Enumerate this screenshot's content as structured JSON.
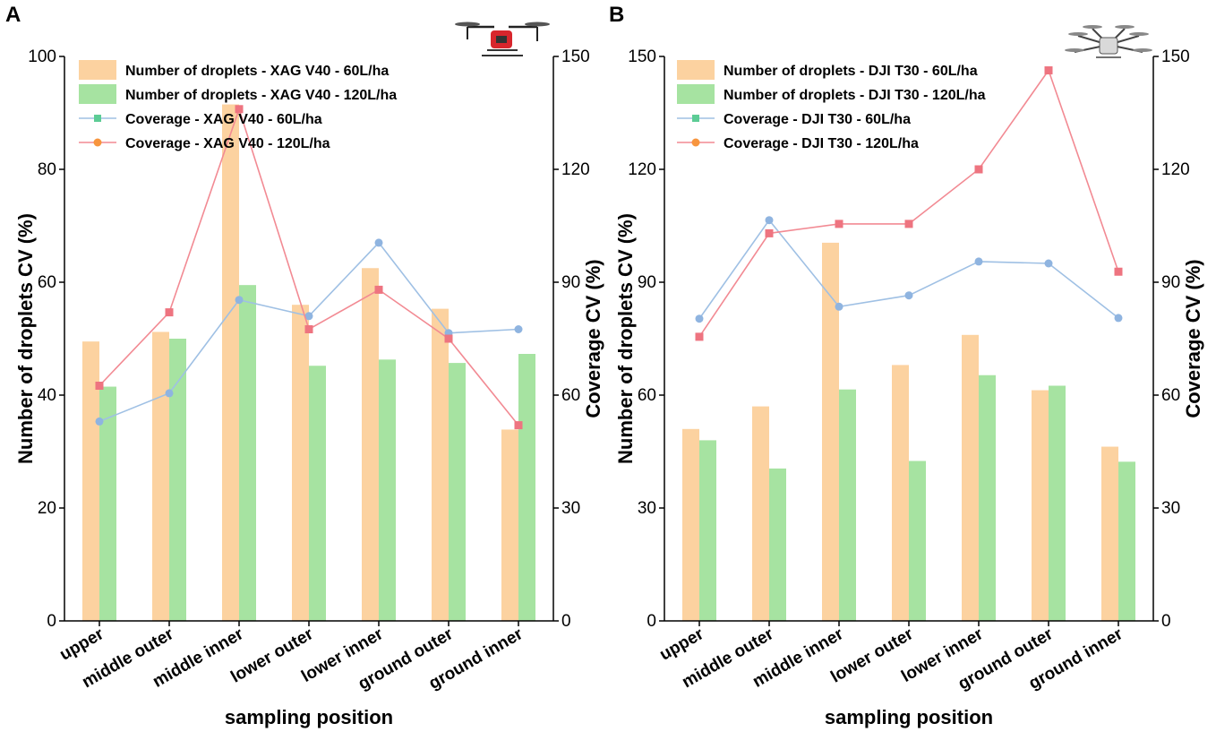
{
  "colors": {
    "bar_60": "#fcd2a0",
    "bar_120": "#a6e3a1",
    "line_60": "#9fc0e4",
    "line_120": "#f28a93",
    "marker_60": "#8fb4e0",
    "marker_120": "#ee7480",
    "legend_marker_60": "#5ccc95",
    "legend_marker_120": "#f7953e",
    "axis": "#000000"
  },
  "chart_data": [
    {
      "panel": "A",
      "type": "bar+line",
      "categories": [
        "upper",
        "middle outer",
        "middle inner",
        "lower outer",
        "lower inner",
        "ground outer",
        "ground inner"
      ],
      "xlabel": "sampling position",
      "ylabel": "Number of droplets CV (%)",
      "y2label": "Coverage CV (%)",
      "ylim": [
        0,
        100
      ],
      "yticks": [
        0,
        20,
        40,
        60,
        80,
        100
      ],
      "y2lim": [
        0,
        150
      ],
      "y2ticks": [
        0,
        30,
        60,
        90,
        120,
        150
      ],
      "bars": [
        {
          "name": "Number of droplets - XAG V40 - 60L/ha",
          "key": "60",
          "values": [
            49.5,
            51.2,
            91.5,
            56.0,
            62.5,
            55.3,
            33.9
          ]
        },
        {
          "name": "Number of droplets - XAG V40 - 120L/ha",
          "key": "120",
          "values": [
            41.5,
            50.0,
            59.5,
            45.2,
            46.3,
            45.7,
            47.3
          ]
        }
      ],
      "lines": [
        {
          "name": "Coverage - XAG V40 - 60L/ha",
          "key": "60",
          "values": [
            53.0,
            60.5,
            85.3,
            81.0,
            100.5,
            76.5,
            77.5
          ]
        },
        {
          "name": "Coverage - XAG V40 - 120L/ha",
          "key": "120",
          "values": [
            62.5,
            82.0,
            136.0,
            77.5,
            88.0,
            75.0,
            52.0
          ]
        }
      ]
    },
    {
      "panel": "B",
      "type": "bar+line",
      "categories": [
        "upper",
        "middle outer",
        "middle inner",
        "lower outer",
        "lower inner",
        "ground outer",
        "ground inner"
      ],
      "xlabel": "sampling position",
      "ylabel": "Number of droplets CV (%)",
      "y2label": "Coverage CV (%)",
      "ylim": [
        0,
        150
      ],
      "yticks": [
        0,
        30,
        60,
        90,
        120,
        150
      ],
      "y2lim": [
        0,
        150
      ],
      "y2ticks": [
        0,
        30,
        60,
        90,
        120,
        150
      ],
      "bars": [
        {
          "name": "Number of droplets - DJI T30 - 60L/ha",
          "key": "60",
          "values": [
            51.0,
            57.0,
            100.5,
            68.0,
            76.0,
            61.3,
            46.3
          ]
        },
        {
          "name": "Number of droplets - DJI T30 - 120L/ha",
          "key": "120",
          "values": [
            48.0,
            40.5,
            61.5,
            42.5,
            65.3,
            62.5,
            42.3
          ]
        }
      ],
      "lines": [
        {
          "name": "Coverage - DJI T30 - 60L/ha",
          "key": "60",
          "values": [
            80.3,
            106.5,
            83.5,
            86.5,
            95.5,
            95.0,
            80.5
          ]
        },
        {
          "name": "Coverage - DJI T30 - 120L/ha",
          "key": "120",
          "values": [
            75.5,
            103.0,
            105.5,
            105.5,
            120.0,
            146.3,
            92.8
          ]
        }
      ]
    }
  ]
}
